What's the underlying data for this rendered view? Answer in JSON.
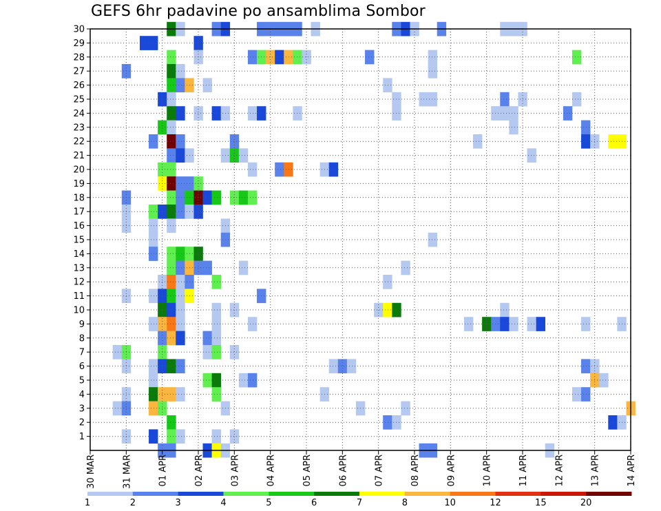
{
  "chart_data": {
    "type": "heatmap",
    "title": "GEFS 6hr padavine po ansamblima Sombor",
    "x_tick_labels": [
      "30 MAR",
      "31 MAR",
      "01 APR",
      "02 APR",
      "03 APR",
      "04 APR",
      "05 APR",
      "06 APR",
      "07 APR",
      "08 APR",
      "09 APR",
      "10 APR",
      "11 APR",
      "12 APR",
      "13 APR",
      "14 APR"
    ],
    "y_tick_labels": [
      "1",
      "2",
      "3",
      "4",
      "5",
      "6",
      "7",
      "8",
      "9",
      "10",
      "11",
      "12",
      "13",
      "14",
      "15",
      "16",
      "17",
      "18",
      "19",
      "20",
      "21",
      "22",
      "23",
      "24",
      "25",
      "26",
      "27",
      "28",
      "29",
      "30"
    ],
    "time_steps": 60,
    "members_min": 0,
    "members_max": 30,
    "grid": true,
    "legend": {
      "labels": [
        "1",
        "2",
        "3",
        "4",
        "5",
        "6",
        "7",
        "8",
        "10",
        "12",
        "15",
        "20"
      ],
      "colors": [
        "#b4c8f0",
        "#5a82eb",
        "#1a48d8",
        "#60ee50",
        "#18c818",
        "#0a7a0a",
        "#ffff00",
        "#fbb640",
        "#f87818",
        "#e03210",
        "#c81808",
        "#6e0000"
      ]
    },
    "cells": [
      {
        "t": 9,
        "m": 30,
        "c": 5
      },
      {
        "t": 10,
        "m": 30,
        "c": 0
      },
      {
        "t": 14,
        "m": 30,
        "c": 1
      },
      {
        "t": 15,
        "m": 30,
        "c": 2
      },
      {
        "t": 19,
        "m": 30,
        "c": 1
      },
      {
        "t": 20,
        "m": 30,
        "c": 1
      },
      {
        "t": 21,
        "m": 30,
        "c": 1
      },
      {
        "t": 22,
        "m": 30,
        "c": 1
      },
      {
        "t": 23,
        "m": 30,
        "c": 1
      },
      {
        "t": 25,
        "m": 30,
        "c": 0
      },
      {
        "t": 34,
        "m": 30,
        "c": 1
      },
      {
        "t": 35,
        "m": 30,
        "c": 2
      },
      {
        "t": 36,
        "m": 30,
        "c": 0
      },
      {
        "t": 39,
        "m": 30,
        "c": 1
      },
      {
        "t": 46,
        "m": 30,
        "c": 0
      },
      {
        "t": 47,
        "m": 30,
        "c": 0
      },
      {
        "t": 48,
        "m": 30,
        "c": 0
      },
      {
        "t": 6,
        "m": 29,
        "c": 2
      },
      {
        "t": 7,
        "m": 29,
        "c": 2
      },
      {
        "t": 12,
        "m": 29,
        "c": 2
      },
      {
        "t": 9,
        "m": 28,
        "c": 3
      },
      {
        "t": 12,
        "m": 28,
        "c": 0
      },
      {
        "t": 18,
        "m": 28,
        "c": 1
      },
      {
        "t": 19,
        "m": 28,
        "c": 3
      },
      {
        "t": 20,
        "m": 28,
        "c": 7
      },
      {
        "t": 21,
        "m": 28,
        "c": 2
      },
      {
        "t": 22,
        "m": 28,
        "c": 7
      },
      {
        "t": 23,
        "m": 28,
        "c": 3
      },
      {
        "t": 24,
        "m": 28,
        "c": 0
      },
      {
        "t": 31,
        "m": 28,
        "c": 1
      },
      {
        "t": 38,
        "m": 28,
        "c": 0
      },
      {
        "t": 54,
        "m": 28,
        "c": 3
      },
      {
        "t": 4,
        "m": 27,
        "c": 1
      },
      {
        "t": 9,
        "m": 27,
        "c": 5
      },
      {
        "t": 10,
        "m": 27,
        "c": 0
      },
      {
        "t": 38,
        "m": 27,
        "c": 0
      },
      {
        "t": 9,
        "m": 26,
        "c": 4
      },
      {
        "t": 10,
        "m": 26,
        "c": 1
      },
      {
        "t": 11,
        "m": 26,
        "c": 7
      },
      {
        "t": 13,
        "m": 26,
        "c": 0
      },
      {
        "t": 33,
        "m": 26,
        "c": 0
      },
      {
        "t": 8,
        "m": 25,
        "c": 2
      },
      {
        "t": 9,
        "m": 25,
        "c": 0
      },
      {
        "t": 34,
        "m": 25,
        "c": 0
      },
      {
        "t": 37,
        "m": 25,
        "c": 0
      },
      {
        "t": 38,
        "m": 25,
        "c": 0
      },
      {
        "t": 46,
        "m": 25,
        "c": 1
      },
      {
        "t": 48,
        "m": 25,
        "c": 0
      },
      {
        "t": 54,
        "m": 25,
        "c": 0
      },
      {
        "t": 9,
        "m": 24,
        "c": 5
      },
      {
        "t": 10,
        "m": 24,
        "c": 2
      },
      {
        "t": 12,
        "m": 24,
        "c": 0
      },
      {
        "t": 14,
        "m": 24,
        "c": 2
      },
      {
        "t": 15,
        "m": 24,
        "c": 0
      },
      {
        "t": 18,
        "m": 24,
        "c": 0
      },
      {
        "t": 19,
        "m": 24,
        "c": 2
      },
      {
        "t": 23,
        "m": 24,
        "c": 0
      },
      {
        "t": 34,
        "m": 24,
        "c": 0
      },
      {
        "t": 45,
        "m": 24,
        "c": 0
      },
      {
        "t": 46,
        "m": 24,
        "c": 0
      },
      {
        "t": 47,
        "m": 24,
        "c": 0
      },
      {
        "t": 53,
        "m": 24,
        "c": 1
      },
      {
        "t": 8,
        "m": 23,
        "c": 4
      },
      {
        "t": 9,
        "m": 23,
        "c": 0
      },
      {
        "t": 47,
        "m": 23,
        "c": 0
      },
      {
        "t": 55,
        "m": 23,
        "c": 1
      },
      {
        "t": 7,
        "m": 22,
        "c": 1
      },
      {
        "t": 9,
        "m": 22,
        "c": 11
      },
      {
        "t": 10,
        "m": 22,
        "c": 1
      },
      {
        "t": 16,
        "m": 22,
        "c": 1
      },
      {
        "t": 43,
        "m": 22,
        "c": 0
      },
      {
        "t": 55,
        "m": 22,
        "c": 2
      },
      {
        "t": 56,
        "m": 22,
        "c": 0
      },
      {
        "t": 58,
        "m": 22,
        "c": 6
      },
      {
        "t": 59,
        "m": 22,
        "c": 6
      },
      {
        "t": 9,
        "m": 21,
        "c": 1
      },
      {
        "t": 10,
        "m": 21,
        "c": 2
      },
      {
        "t": 11,
        "m": 21,
        "c": 0
      },
      {
        "t": 15,
        "m": 21,
        "c": 0
      },
      {
        "t": 16,
        "m": 21,
        "c": 4
      },
      {
        "t": 17,
        "m": 21,
        "c": 0
      },
      {
        "t": 49,
        "m": 21,
        "c": 0
      },
      {
        "t": 8,
        "m": 20,
        "c": 3
      },
      {
        "t": 9,
        "m": 20,
        "c": 3
      },
      {
        "t": 18,
        "m": 20,
        "c": 0
      },
      {
        "t": 21,
        "m": 20,
        "c": 1
      },
      {
        "t": 22,
        "m": 20,
        "c": 8
      },
      {
        "t": 26,
        "m": 20,
        "c": 0
      },
      {
        "t": 27,
        "m": 20,
        "c": 2
      },
      {
        "t": 8,
        "m": 19,
        "c": 6
      },
      {
        "t": 9,
        "m": 19,
        "c": 11
      },
      {
        "t": 10,
        "m": 19,
        "c": 1
      },
      {
        "t": 11,
        "m": 19,
        "c": 1
      },
      {
        "t": 12,
        "m": 19,
        "c": 3
      },
      {
        "t": 4,
        "m": 18,
        "c": 1
      },
      {
        "t": 9,
        "m": 18,
        "c": 3
      },
      {
        "t": 10,
        "m": 18,
        "c": 1
      },
      {
        "t": 11,
        "m": 18,
        "c": 4
      },
      {
        "t": 12,
        "m": 18,
        "c": 11
      },
      {
        "t": 13,
        "m": 18,
        "c": 2
      },
      {
        "t": 14,
        "m": 18,
        "c": 4
      },
      {
        "t": 16,
        "m": 18,
        "c": 3
      },
      {
        "t": 17,
        "m": 18,
        "c": 4
      },
      {
        "t": 18,
        "m": 18,
        "c": 3
      },
      {
        "t": 4,
        "m": 17,
        "c": 0
      },
      {
        "t": 7,
        "m": 17,
        "c": 3
      },
      {
        "t": 8,
        "m": 17,
        "c": 2
      },
      {
        "t": 9,
        "m": 17,
        "c": 5
      },
      {
        "t": 10,
        "m": 17,
        "c": 1
      },
      {
        "t": 11,
        "m": 17,
        "c": 0
      },
      {
        "t": 12,
        "m": 17,
        "c": 2
      },
      {
        "t": 4,
        "m": 16,
        "c": 0
      },
      {
        "t": 7,
        "m": 16,
        "c": 0
      },
      {
        "t": 9,
        "m": 16,
        "c": 0
      },
      {
        "t": 15,
        "m": 16,
        "c": 0
      },
      {
        "t": 7,
        "m": 15,
        "c": 0
      },
      {
        "t": 15,
        "m": 15,
        "c": 1
      },
      {
        "t": 38,
        "m": 15,
        "c": 0
      },
      {
        "t": 7,
        "m": 14,
        "c": 1
      },
      {
        "t": 9,
        "m": 14,
        "c": 3
      },
      {
        "t": 10,
        "m": 14,
        "c": 4
      },
      {
        "t": 11,
        "m": 14,
        "c": 3
      },
      {
        "t": 12,
        "m": 14,
        "c": 5
      },
      {
        "t": 9,
        "m": 13,
        "c": 3
      },
      {
        "t": 10,
        "m": 13,
        "c": 1
      },
      {
        "t": 11,
        "m": 13,
        "c": 7
      },
      {
        "t": 12,
        "m": 13,
        "c": 1
      },
      {
        "t": 13,
        "m": 13,
        "c": 1
      },
      {
        "t": 17,
        "m": 13,
        "c": 0
      },
      {
        "t": 35,
        "m": 13,
        "c": 0
      },
      {
        "t": 8,
        "m": 12,
        "c": 0
      },
      {
        "t": 9,
        "m": 12,
        "c": 8
      },
      {
        "t": 10,
        "m": 12,
        "c": 0
      },
      {
        "t": 11,
        "m": 12,
        "c": 1
      },
      {
        "t": 14,
        "m": 12,
        "c": 3
      },
      {
        "t": 33,
        "m": 12,
        "c": 0
      },
      {
        "t": 4,
        "m": 11,
        "c": 0
      },
      {
        "t": 7,
        "m": 11,
        "c": 0
      },
      {
        "t": 8,
        "m": 11,
        "c": 2
      },
      {
        "t": 9,
        "m": 11,
        "c": 4
      },
      {
        "t": 10,
        "m": 11,
        "c": 0
      },
      {
        "t": 11,
        "m": 11,
        "c": 6
      },
      {
        "t": 19,
        "m": 11,
        "c": 1
      },
      {
        "t": 8,
        "m": 10,
        "c": 5
      },
      {
        "t": 9,
        "m": 10,
        "c": 2
      },
      {
        "t": 10,
        "m": 10,
        "c": 0
      },
      {
        "t": 14,
        "m": 10,
        "c": 0
      },
      {
        "t": 16,
        "m": 10,
        "c": 0
      },
      {
        "t": 32,
        "m": 10,
        "c": 0
      },
      {
        "t": 33,
        "m": 10,
        "c": 6
      },
      {
        "t": 34,
        "m": 10,
        "c": 5
      },
      {
        "t": 46,
        "m": 10,
        "c": 0
      },
      {
        "t": 7,
        "m": 9,
        "c": 0
      },
      {
        "t": 8,
        "m": 9,
        "c": 7
      },
      {
        "t": 9,
        "m": 9,
        "c": 8
      },
      {
        "t": 10,
        "m": 9,
        "c": 0
      },
      {
        "t": 14,
        "m": 9,
        "c": 0
      },
      {
        "t": 18,
        "m": 9,
        "c": 0
      },
      {
        "t": 42,
        "m": 9,
        "c": 0
      },
      {
        "t": 44,
        "m": 9,
        "c": 5
      },
      {
        "t": 45,
        "m": 9,
        "c": 1
      },
      {
        "t": 46,
        "m": 9,
        "c": 2
      },
      {
        "t": 47,
        "m": 9,
        "c": 0
      },
      {
        "t": 49,
        "m": 9,
        "c": 0
      },
      {
        "t": 50,
        "m": 9,
        "c": 2
      },
      {
        "t": 55,
        "m": 9,
        "c": 0
      },
      {
        "t": 59,
        "m": 9,
        "c": 0
      },
      {
        "t": 8,
        "m": 8,
        "c": 1
      },
      {
        "t": 9,
        "m": 8,
        "c": 7
      },
      {
        "t": 10,
        "m": 8,
        "c": 2
      },
      {
        "t": 13,
        "m": 8,
        "c": 1
      },
      {
        "t": 14,
        "m": 8,
        "c": 0
      },
      {
        "t": 3,
        "m": 7,
        "c": 0
      },
      {
        "t": 4,
        "m": 7,
        "c": 3
      },
      {
        "t": 8,
        "m": 7,
        "c": 3
      },
      {
        "t": 13,
        "m": 7,
        "c": 0
      },
      {
        "t": 14,
        "m": 7,
        "c": 3
      },
      {
        "t": 16,
        "m": 7,
        "c": 0
      },
      {
        "t": 4,
        "m": 6,
        "c": 0
      },
      {
        "t": 7,
        "m": 6,
        "c": 0
      },
      {
        "t": 8,
        "m": 6,
        "c": 2
      },
      {
        "t": 9,
        "m": 6,
        "c": 5
      },
      {
        "t": 10,
        "m": 6,
        "c": 1
      },
      {
        "t": 27,
        "m": 6,
        "c": 0
      },
      {
        "t": 28,
        "m": 6,
        "c": 1
      },
      {
        "t": 29,
        "m": 6,
        "c": 0
      },
      {
        "t": 55,
        "m": 6,
        "c": 1
      },
      {
        "t": 56,
        "m": 6,
        "c": 0
      },
      {
        "t": 7,
        "m": 5,
        "c": 0
      },
      {
        "t": 13,
        "m": 5,
        "c": 3
      },
      {
        "t": 14,
        "m": 5,
        "c": 5
      },
      {
        "t": 17,
        "m": 5,
        "c": 0
      },
      {
        "t": 18,
        "m": 5,
        "c": 1
      },
      {
        "t": 56,
        "m": 5,
        "c": 7
      },
      {
        "t": 57,
        "m": 5,
        "c": 0
      },
      {
        "t": 4,
        "m": 4,
        "c": 0
      },
      {
        "t": 7,
        "m": 4,
        "c": 5
      },
      {
        "t": 8,
        "m": 4,
        "c": 7
      },
      {
        "t": 9,
        "m": 4,
        "c": 7
      },
      {
        "t": 10,
        "m": 4,
        "c": 0
      },
      {
        "t": 14,
        "m": 4,
        "c": 3
      },
      {
        "t": 26,
        "m": 4,
        "c": 0
      },
      {
        "t": 54,
        "m": 4,
        "c": 0
      },
      {
        "t": 55,
        "m": 4,
        "c": 1
      },
      {
        "t": 3,
        "m": 3,
        "c": 0
      },
      {
        "t": 4,
        "m": 3,
        "c": 1
      },
      {
        "t": 7,
        "m": 3,
        "c": 7
      },
      {
        "t": 8,
        "m": 3,
        "c": 3
      },
      {
        "t": 15,
        "m": 3,
        "c": 0
      },
      {
        "t": 30,
        "m": 3,
        "c": 0
      },
      {
        "t": 35,
        "m": 3,
        "c": 0
      },
      {
        "t": 60,
        "m": 3,
        "c": 7
      },
      {
        "t": 9,
        "m": 2,
        "c": 4
      },
      {
        "t": 33,
        "m": 2,
        "c": 1
      },
      {
        "t": 34,
        "m": 2,
        "c": 0
      },
      {
        "t": 58,
        "m": 2,
        "c": 2
      },
      {
        "t": 59,
        "m": 2,
        "c": 0
      },
      {
        "t": 4,
        "m": 1,
        "c": 0
      },
      {
        "t": 7,
        "m": 1,
        "c": 2
      },
      {
        "t": 9,
        "m": 1,
        "c": 3
      },
      {
        "t": 10,
        "m": 1,
        "c": 0
      },
      {
        "t": 14,
        "m": 1,
        "c": 0
      },
      {
        "t": 16,
        "m": 1,
        "c": 0
      },
      {
        "t": 8,
        "m": 0,
        "c": 1
      },
      {
        "t": 9,
        "m": 0,
        "c": 1
      },
      {
        "t": 13,
        "m": 0,
        "c": 2
      },
      {
        "t": 14,
        "m": 0,
        "c": 6
      },
      {
        "t": 15,
        "m": 0,
        "c": 0
      },
      {
        "t": 37,
        "m": 0,
        "c": 1
      },
      {
        "t": 38,
        "m": 0,
        "c": 1
      },
      {
        "t": 51,
        "m": 0,
        "c": 0
      }
    ]
  }
}
